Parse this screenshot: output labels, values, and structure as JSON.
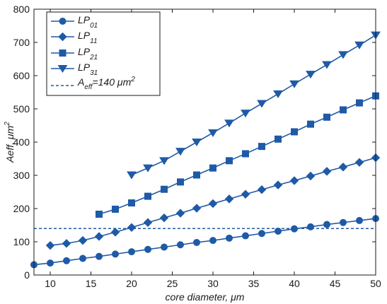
{
  "chart_data": {
    "type": "line",
    "xlabel": "core diameter, μm",
    "ylabel": "Aeff, μm",
    "ylabel_sup": "2",
    "xlim": [
      8,
      50
    ],
    "ylim": [
      0,
      800
    ],
    "xticks": [
      10,
      15,
      20,
      25,
      30,
      35,
      40,
      45,
      50
    ],
    "yticks": [
      0,
      100,
      200,
      300,
      400,
      500,
      600,
      700,
      800
    ],
    "color": "#1f5aa6",
    "grid": false,
    "legend_position": "top-left",
    "series": [
      {
        "name": "LP",
        "name_sub": "01",
        "marker": "circle",
        "x": [
          8,
          10,
          12,
          14,
          16,
          18,
          20,
          22,
          24,
          26,
          28,
          30,
          32,
          34,
          36,
          38,
          40,
          42,
          44,
          46,
          48,
          50
        ],
        "y": [
          31,
          36,
          43,
          50,
          56,
          63,
          70,
          77,
          84,
          91,
          98,
          104,
          111,
          118,
          125,
          132,
          139,
          145,
          152,
          158,
          164,
          170
        ]
      },
      {
        "name": "LP",
        "name_sub": "11",
        "marker": "diamond",
        "x": [
          10,
          12,
          14,
          16,
          18,
          20,
          22,
          24,
          26,
          28,
          30,
          32,
          34,
          36,
          38,
          40,
          42,
          44,
          46,
          48,
          50
        ],
        "y": [
          89,
          95,
          104,
          116,
          129,
          143,
          158,
          172,
          186,
          201,
          215,
          229,
          243,
          257,
          271,
          284,
          298,
          312,
          325,
          339,
          353
        ]
      },
      {
        "name": "LP",
        "name_sub": "21",
        "marker": "square",
        "x": [
          16,
          18,
          20,
          22,
          24,
          26,
          28,
          30,
          32,
          34,
          36,
          38,
          40,
          42,
          44,
          46,
          48,
          50
        ],
        "y": [
          183,
          198,
          217,
          237,
          258,
          280,
          301,
          322,
          344,
          365,
          387,
          409,
          431,
          454,
          475,
          497,
          518,
          539
        ]
      },
      {
        "name": "LP",
        "name_sub": "31",
        "marker": "triangle-down",
        "x": [
          20,
          22,
          24,
          26,
          28,
          30,
          32,
          34,
          36,
          38,
          40,
          42,
          44,
          46,
          48,
          50
        ],
        "y": [
          301,
          322,
          344,
          372,
          400,
          428,
          457,
          487,
          516,
          545,
          575,
          604,
          633,
          663,
          692,
          722
        ]
      }
    ],
    "reference_line": {
      "name": "A",
      "name_sub": "eff",
      "name_rest": "=140 μm",
      "name_sup": "2",
      "y": 140,
      "style": "dashed"
    }
  }
}
